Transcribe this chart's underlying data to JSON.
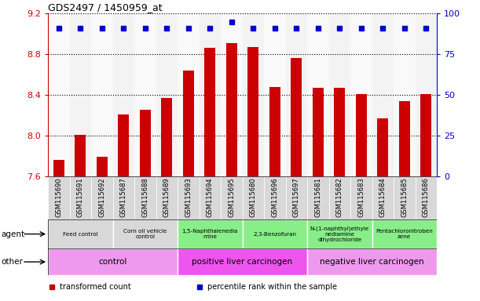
{
  "title": "GDS2497 / 1450959_at",
  "samples": [
    "GSM115690",
    "GSM115691",
    "GSM115692",
    "GSM115687",
    "GSM115688",
    "GSM115689",
    "GSM115693",
    "GSM115694",
    "GSM115695",
    "GSM115680",
    "GSM115696",
    "GSM115697",
    "GSM115681",
    "GSM115682",
    "GSM115683",
    "GSM115684",
    "GSM115685",
    "GSM115686"
  ],
  "bar_values": [
    7.76,
    8.01,
    7.79,
    8.21,
    8.25,
    8.37,
    8.64,
    8.86,
    8.91,
    8.87,
    8.48,
    8.76,
    8.47,
    8.47,
    8.41,
    8.17,
    8.34,
    8.41
  ],
  "percentile_values": [
    91,
    91,
    91,
    91,
    91,
    91,
    91,
    91,
    95,
    91,
    91,
    91,
    91,
    91,
    91,
    91,
    91,
    91
  ],
  "bar_color": "#cc0000",
  "percentile_color": "#0000cc",
  "ylim": [
    7.6,
    9.2
  ],
  "yticks": [
    7.6,
    8.0,
    8.4,
    8.8,
    9.2
  ],
  "right_yticks": [
    0,
    25,
    50,
    75,
    100
  ],
  "agent_groups": [
    {
      "label": "Feed control",
      "start": 0,
      "end": 3,
      "color": "#d8d8d8"
    },
    {
      "label": "Corn oil vehicle\ncontrol",
      "start": 3,
      "end": 6,
      "color": "#d8d8d8"
    },
    {
      "label": "1,5-Naphthalenedia\nmine",
      "start": 6,
      "end": 9,
      "color": "#88ee88"
    },
    {
      "label": "2,3-Benzofuran",
      "start": 9,
      "end": 12,
      "color": "#88ee88"
    },
    {
      "label": "N-(1-naphthyl)ethyle\nnediamine\ndihydrochloride",
      "start": 12,
      "end": 15,
      "color": "#88ee88"
    },
    {
      "label": "Pentachloronitroben\nzene",
      "start": 15,
      "end": 18,
      "color": "#88ee88"
    }
  ],
  "other_groups": [
    {
      "label": "control",
      "start": 0,
      "end": 6,
      "color": "#ee99ee"
    },
    {
      "label": "positive liver carcinogen",
      "start": 6,
      "end": 12,
      "color": "#ee55ee"
    },
    {
      "label": "negative liver carcinogen",
      "start": 12,
      "end": 18,
      "color": "#ee99ee"
    }
  ],
  "legend_items": [
    {
      "label": "transformed count",
      "color": "#cc0000"
    },
    {
      "label": "percentile rank within the sample",
      "color": "#0000cc"
    }
  ],
  "col_bg_odd": "#e8e8e8",
  "col_bg_even": "#d0d0d0",
  "spine_color": "#888888"
}
